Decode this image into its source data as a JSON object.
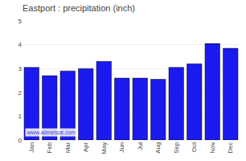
{
  "chart_data": {
    "type": "bar",
    "title": "Eastport : precipitation (inch)",
    "categories": [
      "Jan",
      "Feb",
      "Mar",
      "Apr",
      "May",
      "Jun",
      "Jul",
      "Aug",
      "Sep",
      "Oct",
      "Nov",
      "Dec"
    ],
    "values": [
      3.05,
      2.7,
      2.9,
      3.0,
      3.3,
      2.6,
      2.6,
      2.55,
      3.05,
      3.2,
      4.05,
      3.85
    ],
    "color": "#1a1aee",
    "ylim": [
      0,
      5
    ],
    "yticks": [
      0,
      1,
      2,
      3,
      4,
      5
    ],
    "grid": true,
    "annotations": [
      "www.allmetsat.com"
    ]
  }
}
